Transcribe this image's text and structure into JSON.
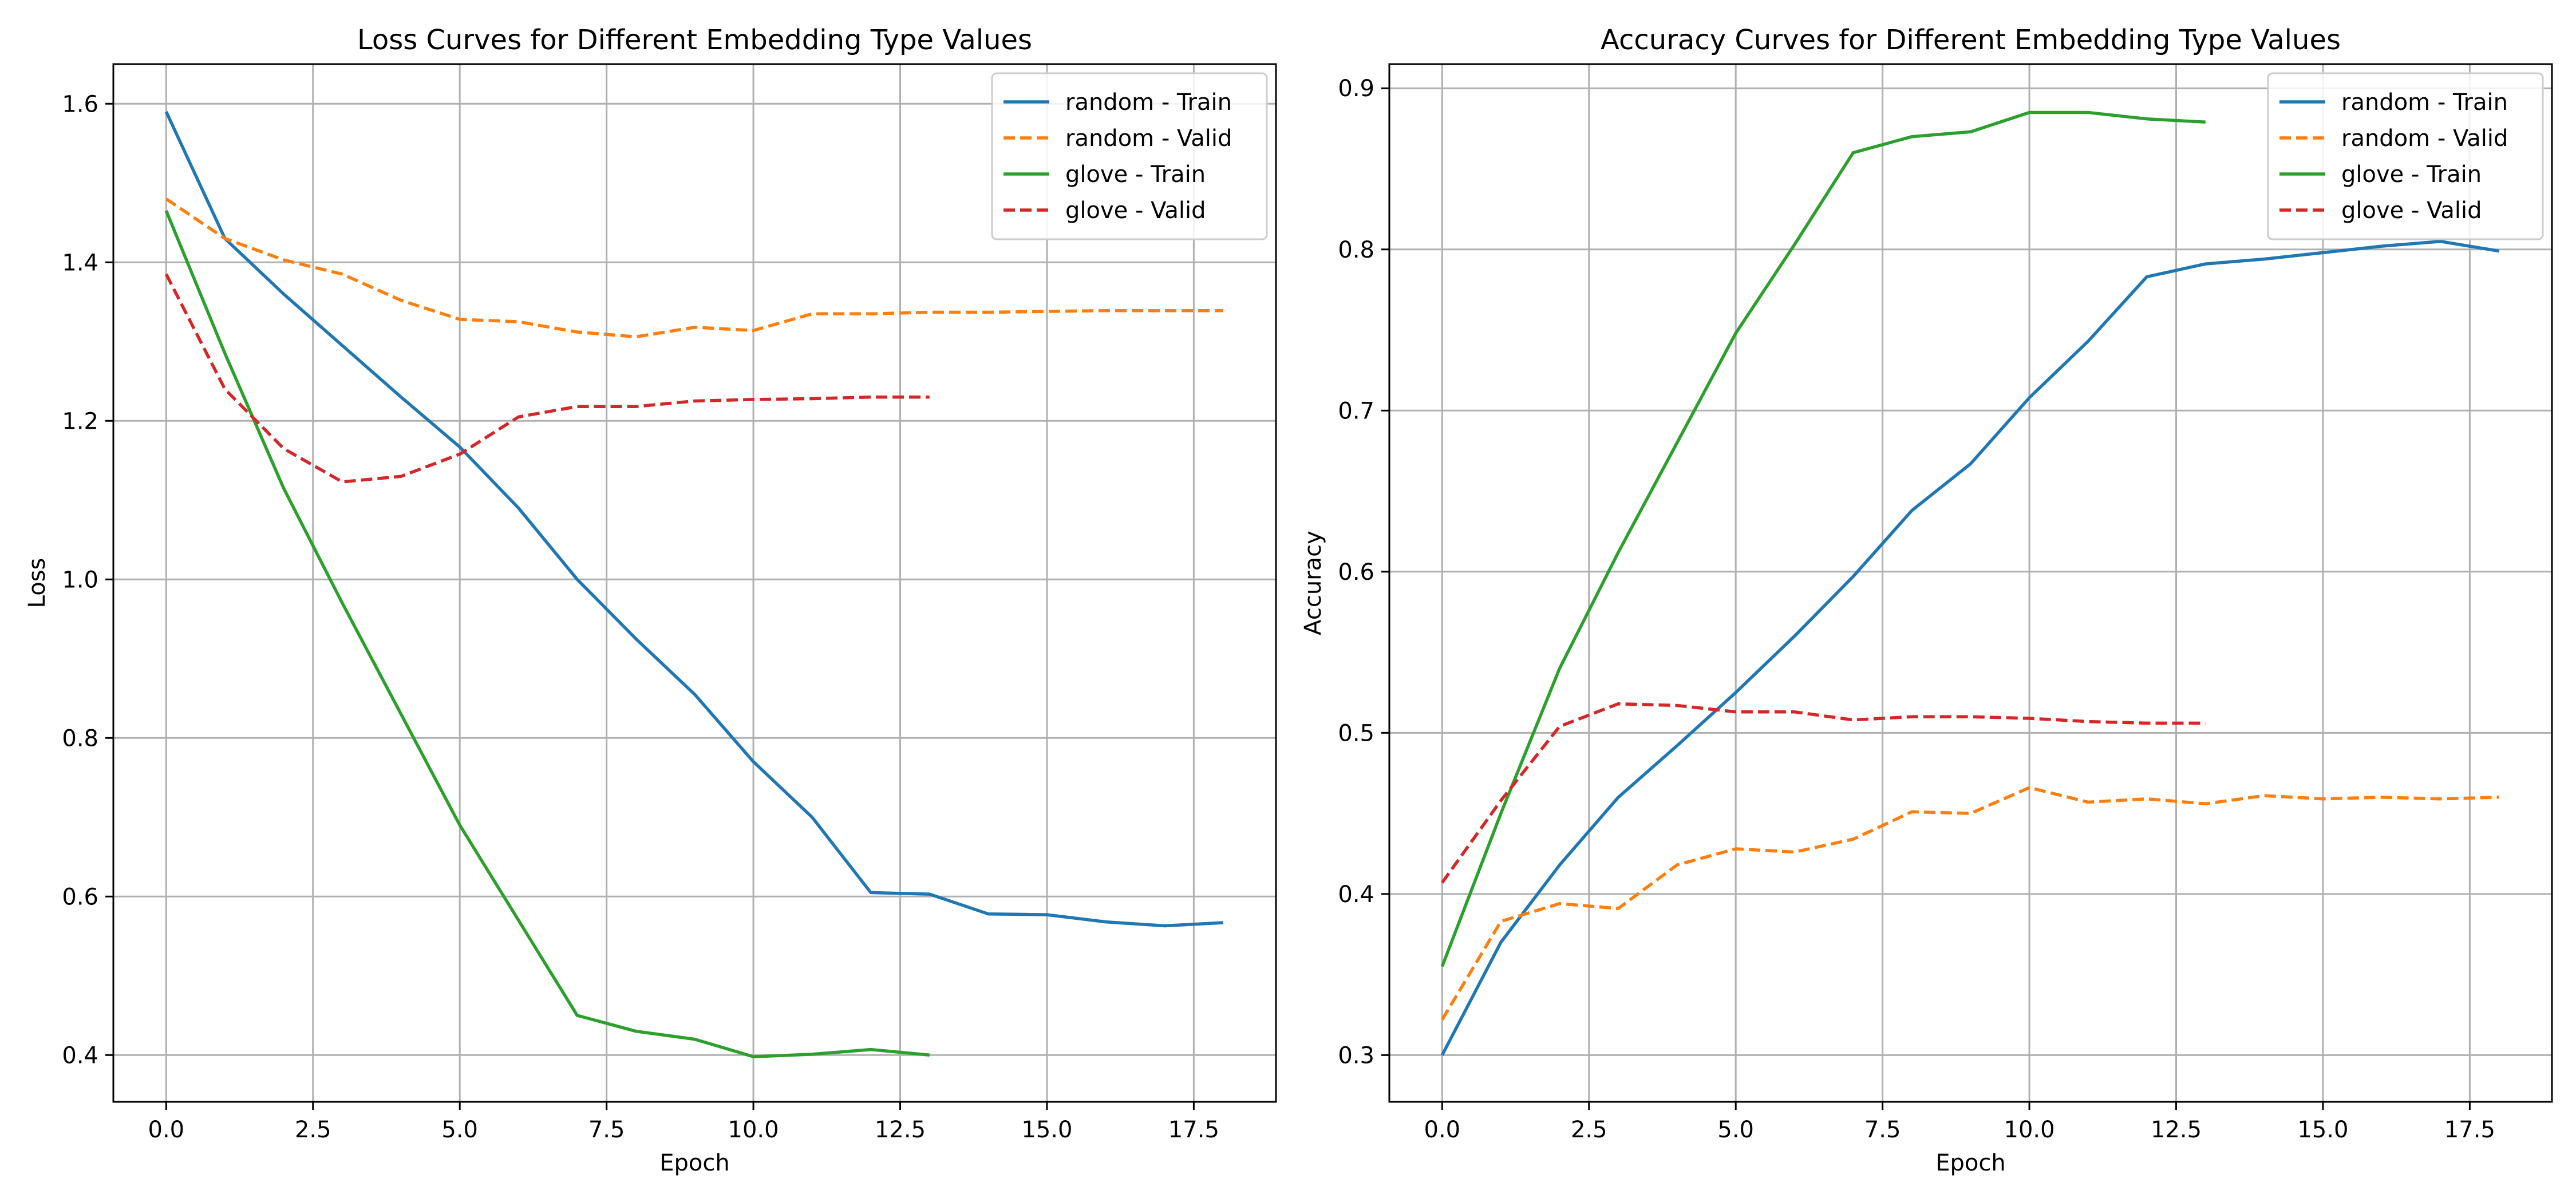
{
  "chart_data": [
    {
      "type": "line",
      "title": "Loss Curves for Different Embedding Type Values",
      "xlabel": "Epoch",
      "ylabel": "Loss",
      "xlim": [
        -0.9,
        18.9
      ],
      "ylim": [
        0.341,
        1.65
      ],
      "xticks": [
        0.0,
        2.5,
        5.0,
        7.5,
        10.0,
        12.5,
        15.0,
        17.5
      ],
      "xtick_labels": [
        "0.0",
        "2.5",
        "5.0",
        "7.5",
        "10.0",
        "12.5",
        "15.0",
        "17.5"
      ],
      "yticks": [
        0.4,
        0.6,
        0.8,
        1.0,
        1.2,
        1.4,
        1.6
      ],
      "ytick_labels": [
        "0.4",
        "0.6",
        "0.8",
        "1.0",
        "1.2",
        "1.4",
        "1.6"
      ],
      "grid": true,
      "legend_position": "top-right",
      "series": [
        {
          "name": "random - Train",
          "color": "#1f77b4",
          "style": "solid",
          "x": [
            0,
            1,
            2,
            3,
            4,
            5,
            6,
            7,
            8,
            9,
            10,
            11,
            12,
            13,
            14,
            15,
            16,
            17,
            18
          ],
          "y": [
            1.59,
            1.43,
            1.36,
            1.295,
            1.23,
            1.167,
            1.09,
            1.0,
            0.925,
            0.855,
            0.77,
            0.7,
            0.605,
            0.603,
            0.578,
            0.577,
            0.568,
            0.563,
            0.567
          ]
        },
        {
          "name": "random - Valid",
          "color": "#ff7f0e",
          "style": "dashed",
          "x": [
            0,
            1,
            2,
            3,
            4,
            5,
            6,
            7,
            8,
            9,
            10,
            11,
            12,
            13,
            14,
            15,
            16,
            17,
            18
          ],
          "y": [
            1.48,
            1.43,
            1.403,
            1.385,
            1.352,
            1.328,
            1.325,
            1.312,
            1.306,
            1.318,
            1.314,
            1.335,
            1.335,
            1.337,
            1.337,
            1.338,
            1.339,
            1.339,
            1.339
          ]
        },
        {
          "name": "glove - Train",
          "color": "#2ca02c",
          "style": "solid",
          "x": [
            0,
            1,
            2,
            3,
            4,
            5,
            6,
            7,
            8,
            9,
            10,
            11,
            12,
            13
          ],
          "y": [
            1.465,
            1.285,
            1.115,
            0.97,
            0.83,
            0.69,
            0.57,
            0.45,
            0.43,
            0.42,
            0.398,
            0.401,
            0.407,
            0.4
          ]
        },
        {
          "name": "glove - Valid",
          "color": "#d62728",
          "style": "dashed",
          "x": [
            0,
            1,
            2,
            3,
            4,
            5,
            6,
            7,
            8,
            9,
            10,
            11,
            12,
            13
          ],
          "y": [
            1.385,
            1.24,
            1.165,
            1.123,
            1.13,
            1.158,
            1.205,
            1.218,
            1.218,
            1.225,
            1.227,
            1.228,
            1.23,
            1.23
          ]
        }
      ]
    },
    {
      "type": "line",
      "title": "Accuracy Curves for Different Embedding Type Values",
      "xlabel": "Epoch",
      "ylabel": "Accuracy",
      "xlim": [
        -0.9,
        18.9
      ],
      "ylim": [
        0.271,
        0.915
      ],
      "xticks": [
        0.0,
        2.5,
        5.0,
        7.5,
        10.0,
        12.5,
        15.0,
        17.5
      ],
      "xtick_labels": [
        "0.0",
        "2.5",
        "5.0",
        "7.5",
        "10.0",
        "12.5",
        "15.0",
        "17.5"
      ],
      "yticks": [
        0.3,
        0.4,
        0.5,
        0.6,
        0.7,
        0.8,
        0.9
      ],
      "ytick_labels": [
        "0.3",
        "0.4",
        "0.5",
        "0.6",
        "0.7",
        "0.8",
        "0.9"
      ],
      "grid": true,
      "legend_position": "top-right",
      "series": [
        {
          "name": "random - Train",
          "color": "#1f77b4",
          "style": "solid",
          "x": [
            0,
            1,
            2,
            3,
            4,
            5,
            6,
            7,
            8,
            9,
            10,
            11,
            12,
            13,
            14,
            15,
            16,
            17,
            18
          ],
          "y": [
            0.3,
            0.37,
            0.418,
            0.46,
            0.492,
            0.525,
            0.56,
            0.597,
            0.638,
            0.667,
            0.708,
            0.743,
            0.783,
            0.791,
            0.794,
            0.798,
            0.802,
            0.805,
            0.799
          ]
        },
        {
          "name": "random - Valid",
          "color": "#ff7f0e",
          "style": "dashed",
          "x": [
            0,
            1,
            2,
            3,
            4,
            5,
            6,
            7,
            8,
            9,
            10,
            11,
            12,
            13,
            14,
            15,
            16,
            17,
            18
          ],
          "y": [
            0.322,
            0.383,
            0.394,
            0.391,
            0.418,
            0.428,
            0.426,
            0.434,
            0.451,
            0.45,
            0.466,
            0.457,
            0.459,
            0.456,
            0.461,
            0.459,
            0.46,
            0.459,
            0.46
          ]
        },
        {
          "name": "glove - Train",
          "color": "#2ca02c",
          "style": "solid",
          "x": [
            0,
            1,
            2,
            3,
            4,
            5,
            6,
            7,
            8,
            9,
            10,
            11,
            12,
            13
          ],
          "y": [
            0.355,
            0.45,
            0.54,
            0.612,
            0.68,
            0.748,
            0.803,
            0.86,
            0.87,
            0.873,
            0.885,
            0.885,
            0.881,
            0.879
          ]
        },
        {
          "name": "glove - Valid",
          "color": "#d62728",
          "style": "dashed",
          "x": [
            0,
            1,
            2,
            3,
            4,
            5,
            6,
            7,
            8,
            9,
            10,
            11,
            12,
            13
          ],
          "y": [
            0.407,
            0.458,
            0.504,
            0.518,
            0.517,
            0.513,
            0.513,
            0.508,
            0.51,
            0.51,
            0.509,
            0.507,
            0.506,
            0.506
          ]
        }
      ]
    }
  ]
}
